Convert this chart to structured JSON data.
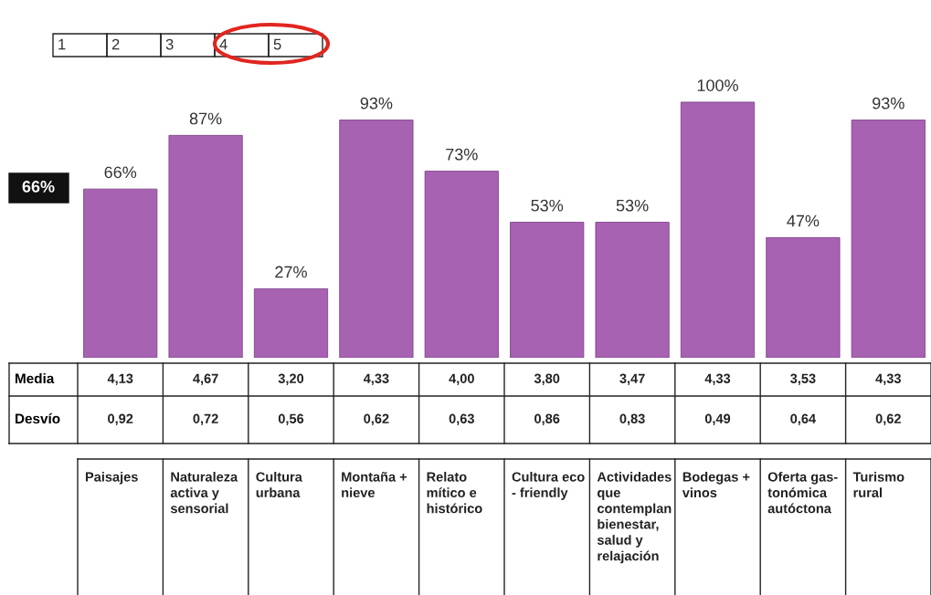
{
  "chart_data": {
    "type": "bar",
    "categories": [
      "Paisajes",
      "Naturaleza activa y sensorial",
      "Cultura urbana",
      "Montaña + nieve",
      "Relato mítico e histórico",
      "Cultura eco - friendly",
      "Actividades que contemplan bienestar, salud y relajación",
      "Bodegas + vinos",
      "Oferta gas-tonómica autóctona",
      "Turismo rural"
    ],
    "values": [
      66,
      87,
      27,
      93,
      73,
      53,
      53,
      100,
      47,
      93
    ],
    "value_labels": [
      "66%",
      "87%",
      "27%",
      "93%",
      "73%",
      "53%",
      "53%",
      "100%",
      "47%",
      "93%"
    ],
    "color": "#a862b2",
    "annotations": [
      "1",
      "2",
      "3",
      "4",
      "5",
      "66%",
      "Media",
      "4,13",
      "4,67",
      "3,20",
      "4,33",
      "4,00",
      "3,80",
      "3,47",
      "4,33",
      "3,53",
      "4,33",
      "Desvío",
      "0,92",
      "0,72",
      "0,56",
      "0,62",
      "0,63",
      "0,86",
      "0,83",
      "0,49",
      "0,64",
      "0,62"
    ]
  }
}
